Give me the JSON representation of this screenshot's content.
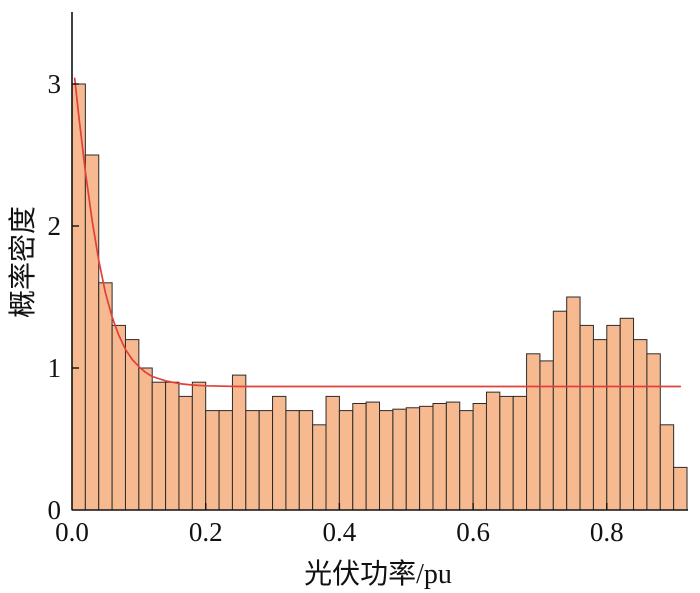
{
  "chart_data": {
    "type": "bar",
    "xlabel": "光伏功率/pu",
    "ylabel": "概率密度",
    "xlim": [
      0,
      0.92
    ],
    "ylim": [
      0,
      3.5
    ],
    "grid": false,
    "xticks": [
      {
        "value": 0,
        "label": "0.0"
      },
      {
        "value": 0.2,
        "label": "0.2"
      },
      {
        "value": 0.4,
        "label": "0.4"
      },
      {
        "value": 0.6,
        "label": "0.6"
      },
      {
        "value": 0.8,
        "label": "0.8"
      }
    ],
    "yticks": [
      {
        "value": 0,
        "label": "0"
      },
      {
        "value": 1,
        "label": "1"
      },
      {
        "value": 2,
        "label": "2"
      },
      {
        "value": 3,
        "label": "3"
      }
    ],
    "series": [
      {
        "type": "bar",
        "bin_edges": [
          0,
          0.02,
          0.04,
          0.06,
          0.08,
          0.1,
          0.12,
          0.14,
          0.16,
          0.18,
          0.2,
          0.22,
          0.24,
          0.26,
          0.28,
          0.3,
          0.32,
          0.34,
          0.36,
          0.38,
          0.4,
          0.42,
          0.44,
          0.46,
          0.48,
          0.5,
          0.52,
          0.54,
          0.56,
          0.58,
          0.6,
          0.62,
          0.64,
          0.66,
          0.68,
          0.7,
          0.72,
          0.74,
          0.76,
          0.78,
          0.8,
          0.82,
          0.84,
          0.86,
          0.88,
          0.9,
          0.92
        ],
        "values": [
          3.0,
          2.5,
          1.6,
          1.3,
          1.2,
          1.0,
          0.9,
          0.9,
          0.8,
          0.9,
          0.7,
          0.7,
          0.95,
          0.7,
          0.7,
          0.8,
          0.7,
          0.7,
          0.6,
          0.8,
          0.7,
          0.75,
          0.76,
          0.7,
          0.71,
          0.72,
          0.73,
          0.75,
          0.76,
          0.7,
          0.75,
          0.83,
          0.8,
          0.8,
          1.1,
          1.05,
          1.4,
          1.5,
          1.3,
          1.2,
          1.3,
          1.35,
          1.2,
          1.1,
          0.6,
          0.3
        ],
        "color": "#f7b98f",
        "edge_color": "#2b2b2b"
      },
      {
        "type": "line",
        "x": [
          0.004,
          0.01,
          0.02,
          0.03,
          0.04,
          0.05,
          0.06,
          0.07,
          0.08,
          0.09,
          0.1,
          0.11,
          0.12,
          0.14,
          0.16,
          0.18,
          0.2,
          0.25,
          0.91
        ],
        "y": [
          3.04,
          2.78,
          2.38,
          2.04,
          1.76,
          1.53,
          1.36,
          1.23,
          1.13,
          1.06,
          1.01,
          0.97,
          0.94,
          0.91,
          0.89,
          0.88,
          0.875,
          0.87,
          0.87
        ],
        "color": "#e2403a"
      }
    ]
  }
}
